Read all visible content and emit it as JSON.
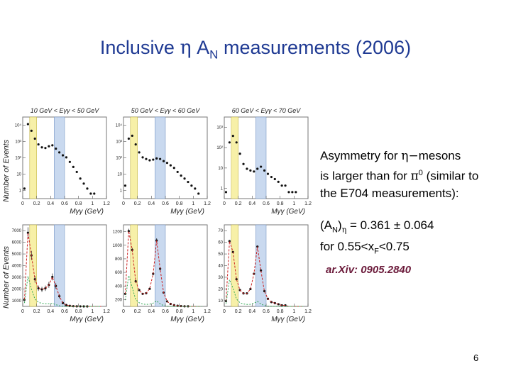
{
  "slide": {
    "title_pre": "Inclusive ",
    "title_eta": "η",
    "title_mid": " A",
    "title_sub": "N",
    "title_post": " measurements (2006)",
    "note1": {
      "l1_a": "Asymmetry for ",
      "l1_sym": "η−",
      "l1_b": "mesons",
      "l2_a": "is larger than for ",
      "l2_sym": "π",
      "l2_sup": "0",
      "l2_b": " (similar to",
      "l3": "the E704 measurements):"
    },
    "note2": {
      "a": "(A",
      "sub1": "N",
      "b": ")",
      "sub2": "η",
      "c": " = 0.361 ± 0.064",
      "d": "for 0.55<x",
      "sub3": "F",
      "e": "<0.75"
    },
    "arxiv": "ar.Xiv: 0905.2840",
    "page_number": "6"
  },
  "colors": {
    "title": "#1f3a93",
    "eta_band": "#c9d9ef",
    "pi0_band": "#f7f0a8",
    "fit_red": "#cc2222",
    "fit_green": "#33aa55",
    "arxiv": "#6b1a3a"
  },
  "chart_data": {
    "type": "scatter",
    "ylabel": "Number of Events",
    "xlabel": "Mγγ (GeV)",
    "x_ticks": [
      "0",
      "0.2",
      "0.4",
      "0.6",
      "0.8",
      "1",
      "1.2"
    ],
    "xlim": [
      0,
      1.2
    ],
    "pi0_band": [
      0.1,
      0.2
    ],
    "eta_band": [
      0.45,
      0.6
    ],
    "bins": [
      25,
      75,
      125,
      175,
      225,
      275,
      325,
      375,
      425,
      475,
      525,
      575,
      625,
      675,
      725,
      775,
      825,
      875,
      925,
      975,
      1025,
      1075,
      1125
    ],
    "energy_ranges": [
      "10 GeV < Eγγ < 50 GeV",
      "50 GeV < Eγγ < 60 GeV",
      "60 GeV < Eγγ < 70 GeV"
    ],
    "top_row": {
      "scale": "log",
      "panels": [
        {
          "y_ticks": [
            "1",
            "10",
            "10²",
            "10³",
            "10⁴"
          ],
          "ylim": [
            0.5,
            40000
          ],
          "values": [
            2,
            15000,
            6000,
            2000,
            900,
            600,
            550,
            700,
            800,
            500,
            300,
            200,
            150,
            80,
            40,
            20,
            8,
            4,
            2,
            1,
            1,
            0,
            0
          ]
        },
        {
          "y_ticks": [
            "1",
            "10",
            "10²",
            "10³",
            "10⁴"
          ],
          "ylim": [
            0.5,
            40000
          ],
          "values": [
            3,
            2000,
            3000,
            900,
            300,
            150,
            120,
            100,
            110,
            130,
            120,
            90,
            70,
            50,
            35,
            20,
            12,
            8,
            5,
            3,
            2,
            1,
            0
          ]
        },
        {
          "y_ticks": [
            "1",
            "10",
            "10²",
            "10³"
          ],
          "ylim": [
            0.5,
            3000
          ],
          "values": [
            1,
            200,
            400,
            200,
            60,
            20,
            12,
            10,
            9,
            12,
            15,
            10,
            7,
            5,
            4,
            3,
            2,
            2,
            1,
            1,
            1,
            0,
            0
          ]
        }
      ]
    },
    "bottom_row": {
      "scale": "linear",
      "panels": [
        {
          "y_ticks": [
            "1000",
            "2000",
            "3000",
            "4000",
            "5000",
            "6000",
            "7000"
          ],
          "ylim": [
            0,
            7200
          ],
          "values": [
            600,
            6500,
            4500,
            2400,
            1600,
            1500,
            1600,
            1900,
            2600,
            1800,
            900,
            300,
            120,
            50,
            20,
            10,
            5,
            2,
            1,
            0,
            0,
            0,
            0
          ]
        },
        {
          "y_ticks": [
            "200",
            "400",
            "600",
            "800",
            "1000",
            "1200"
          ],
          "ylim": [
            0,
            1300
          ],
          "values": [
            200,
            1200,
            900,
            400,
            260,
            200,
            210,
            280,
            520,
            1050,
            600,
            220,
            80,
            40,
            20,
            10,
            5,
            2,
            1,
            0,
            0,
            0,
            0
          ]
        },
        {
          "y_ticks": [
            "10",
            "20",
            "30",
            "40",
            "50",
            "60",
            "70"
          ],
          "ylim": [
            0,
            75
          ],
          "values": [
            5,
            60,
            50,
            25,
            15,
            12,
            12,
            16,
            30,
            55,
            33,
            14,
            7,
            4,
            3,
            2,
            1,
            1,
            0,
            0,
            0,
            0,
            0
          ]
        }
      ]
    }
  }
}
